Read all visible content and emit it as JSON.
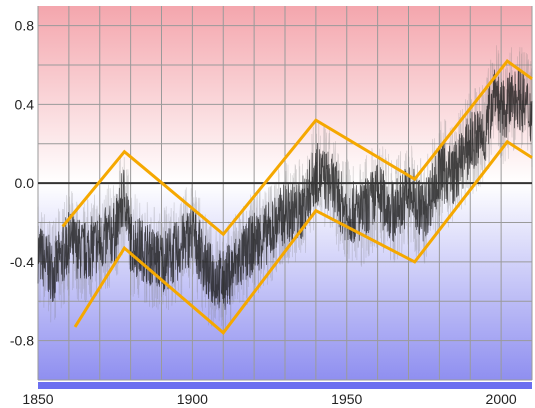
{
  "chart_data": {
    "type": "line",
    "title": "",
    "xlabel": "",
    "ylabel": "",
    "xlim": [
      1850,
      2010
    ],
    "ylim": [
      -1.0,
      0.9
    ],
    "grid": true,
    "x_ticks": [
      1850,
      1900,
      1950,
      2000
    ],
    "x_tick_labels": [
      "1850",
      "1900",
      "1950",
      "2000"
    ],
    "y_ticks": [
      0.8,
      0.4,
      0.0,
      -0.4,
      -0.8
    ],
    "y_tick_labels": [
      "0.8",
      "0.4",
      "0.0",
      "-0.4",
      "-0.8"
    ],
    "background": {
      "top_color": "#f4a6ad",
      "bottom_color": "#8f8ff0",
      "zero_color": "#ffffff"
    },
    "colors": {
      "data_line": "#111111",
      "envelope_lines": "#f5a800",
      "zero_line": "#333333",
      "grid": "#9a9a9a",
      "bottom_bar": "#6b6ff0"
    },
    "series": [
      {
        "role": "temperature-anomaly",
        "x": [
          1850,
          1855,
          1860,
          1865,
          1870,
          1875,
          1878,
          1880,
          1885,
          1890,
          1895,
          1900,
          1905,
          1910,
          1915,
          1920,
          1925,
          1930,
          1935,
          1940,
          1945,
          1950,
          1955,
          1960,
          1965,
          1970,
          1975,
          1980,
          1985,
          1990,
          1995,
          1998,
          2000,
          2005,
          2010
        ],
        "y": [
          -0.35,
          -0.45,
          -0.3,
          -0.35,
          -0.3,
          -0.25,
          -0.05,
          -0.3,
          -0.35,
          -0.4,
          -0.35,
          -0.25,
          -0.45,
          -0.5,
          -0.4,
          -0.3,
          -0.25,
          -0.15,
          -0.15,
          0.05,
          0.0,
          -0.15,
          -0.15,
          -0.05,
          -0.15,
          -0.05,
          -0.15,
          0.05,
          0.05,
          0.2,
          0.25,
          0.5,
          0.35,
          0.45,
          0.35
        ]
      },
      {
        "role": "upper-envelope",
        "x": [
          1858,
          1878,
          1910,
          1940,
          1972,
          2002,
          2010
        ],
        "y": [
          -0.22,
          0.16,
          -0.26,
          0.32,
          0.02,
          0.62,
          0.53
        ]
      },
      {
        "role": "lower-envelope",
        "x": [
          1862,
          1878,
          1910,
          1940,
          1972,
          2002,
          2010
        ],
        "y": [
          -0.73,
          -0.33,
          -0.76,
          -0.14,
          -0.4,
          0.21,
          0.13
        ]
      }
    ]
  }
}
